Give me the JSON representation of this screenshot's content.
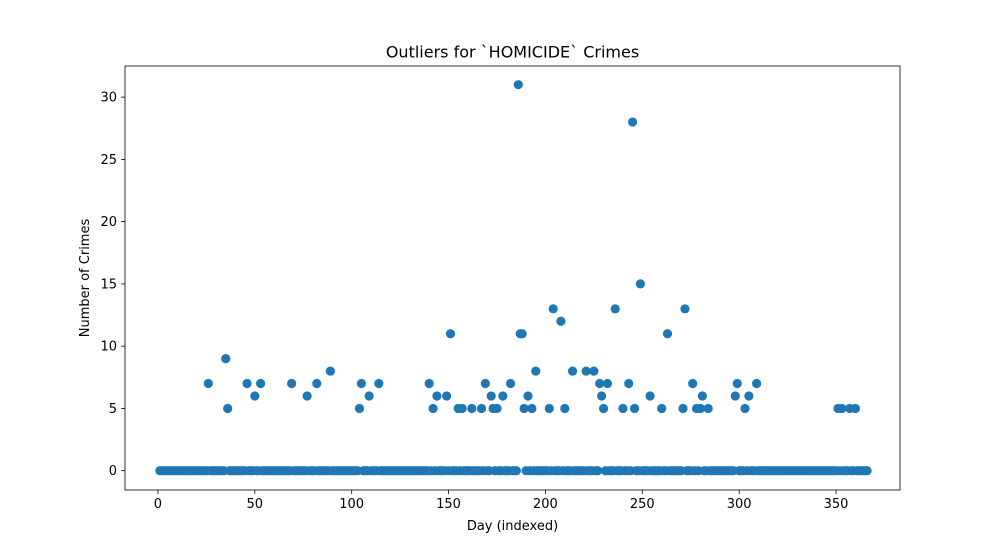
{
  "chart_data": {
    "type": "scatter",
    "title": "Outliers for `HOMICIDE` Crimes",
    "xlabel": "Day (indexed)",
    "ylabel": "Number of Crimes",
    "xlim": [
      -17,
      383
    ],
    "ylim": [
      -1.55,
      32.5
    ],
    "x_ticks": [
      0,
      50,
      100,
      150,
      200,
      250,
      300,
      350
    ],
    "y_ticks": [
      0,
      5,
      10,
      15,
      20,
      25,
      30
    ],
    "grid": false,
    "legend": "none",
    "marker_color": "#1f77b4",
    "outliers": [
      {
        "x": 26,
        "y": 7
      },
      {
        "x": 35,
        "y": 9
      },
      {
        "x": 36,
        "y": 5
      },
      {
        "x": 46,
        "y": 7
      },
      {
        "x": 50,
        "y": 6
      },
      {
        "x": 53,
        "y": 7
      },
      {
        "x": 69,
        "y": 7
      },
      {
        "x": 77,
        "y": 6
      },
      {
        "x": 82,
        "y": 7
      },
      {
        "x": 89,
        "y": 8
      },
      {
        "x": 104,
        "y": 5
      },
      {
        "x": 105,
        "y": 7
      },
      {
        "x": 109,
        "y": 6
      },
      {
        "x": 114,
        "y": 7
      },
      {
        "x": 140,
        "y": 7
      },
      {
        "x": 142,
        "y": 5
      },
      {
        "x": 144,
        "y": 6
      },
      {
        "x": 149,
        "y": 6
      },
      {
        "x": 151,
        "y": 11
      },
      {
        "x": 155,
        "y": 5
      },
      {
        "x": 157,
        "y": 5
      },
      {
        "x": 162,
        "y": 5
      },
      {
        "x": 167,
        "y": 5
      },
      {
        "x": 169,
        "y": 7
      },
      {
        "x": 172,
        "y": 6
      },
      {
        "x": 173,
        "y": 5
      },
      {
        "x": 175,
        "y": 5
      },
      {
        "x": 178,
        "y": 6
      },
      {
        "x": 182,
        "y": 7
      },
      {
        "x": 186,
        "y": 31
      },
      {
        "x": 187,
        "y": 11
      },
      {
        "x": 188,
        "y": 11
      },
      {
        "x": 189,
        "y": 5
      },
      {
        "x": 191,
        "y": 6
      },
      {
        "x": 193,
        "y": 5
      },
      {
        "x": 195,
        "y": 8
      },
      {
        "x": 202,
        "y": 5
      },
      {
        "x": 204,
        "y": 13
      },
      {
        "x": 208,
        "y": 12
      },
      {
        "x": 210,
        "y": 5
      },
      {
        "x": 214,
        "y": 8
      },
      {
        "x": 221,
        "y": 8
      },
      {
        "x": 225,
        "y": 8
      },
      {
        "x": 228,
        "y": 7
      },
      {
        "x": 229,
        "y": 6
      },
      {
        "x": 230,
        "y": 5
      },
      {
        "x": 232,
        "y": 7
      },
      {
        "x": 236,
        "y": 13
      },
      {
        "x": 240,
        "y": 5
      },
      {
        "x": 243,
        "y": 7
      },
      {
        "x": 245,
        "y": 28
      },
      {
        "x": 246,
        "y": 5
      },
      {
        "x": 249,
        "y": 15
      },
      {
        "x": 254,
        "y": 6
      },
      {
        "x": 260,
        "y": 5
      },
      {
        "x": 263,
        "y": 11
      },
      {
        "x": 271,
        "y": 5
      },
      {
        "x": 272,
        "y": 13
      },
      {
        "x": 276,
        "y": 7
      },
      {
        "x": 278,
        "y": 5
      },
      {
        "x": 280,
        "y": 5
      },
      {
        "x": 281,
        "y": 6
      },
      {
        "x": 284,
        "y": 5
      },
      {
        "x": 298,
        "y": 6
      },
      {
        "x": 299,
        "y": 7
      },
      {
        "x": 303,
        "y": 5
      },
      {
        "x": 305,
        "y": 6
      },
      {
        "x": 309,
        "y": 7
      },
      {
        "x": 351,
        "y": 5
      },
      {
        "x": 353,
        "y": 5
      },
      {
        "x": 357,
        "y": 5
      },
      {
        "x": 360,
        "y": 5
      }
    ],
    "baseline": {
      "x_start": 1,
      "x_end": 366,
      "y": 0
    }
  }
}
